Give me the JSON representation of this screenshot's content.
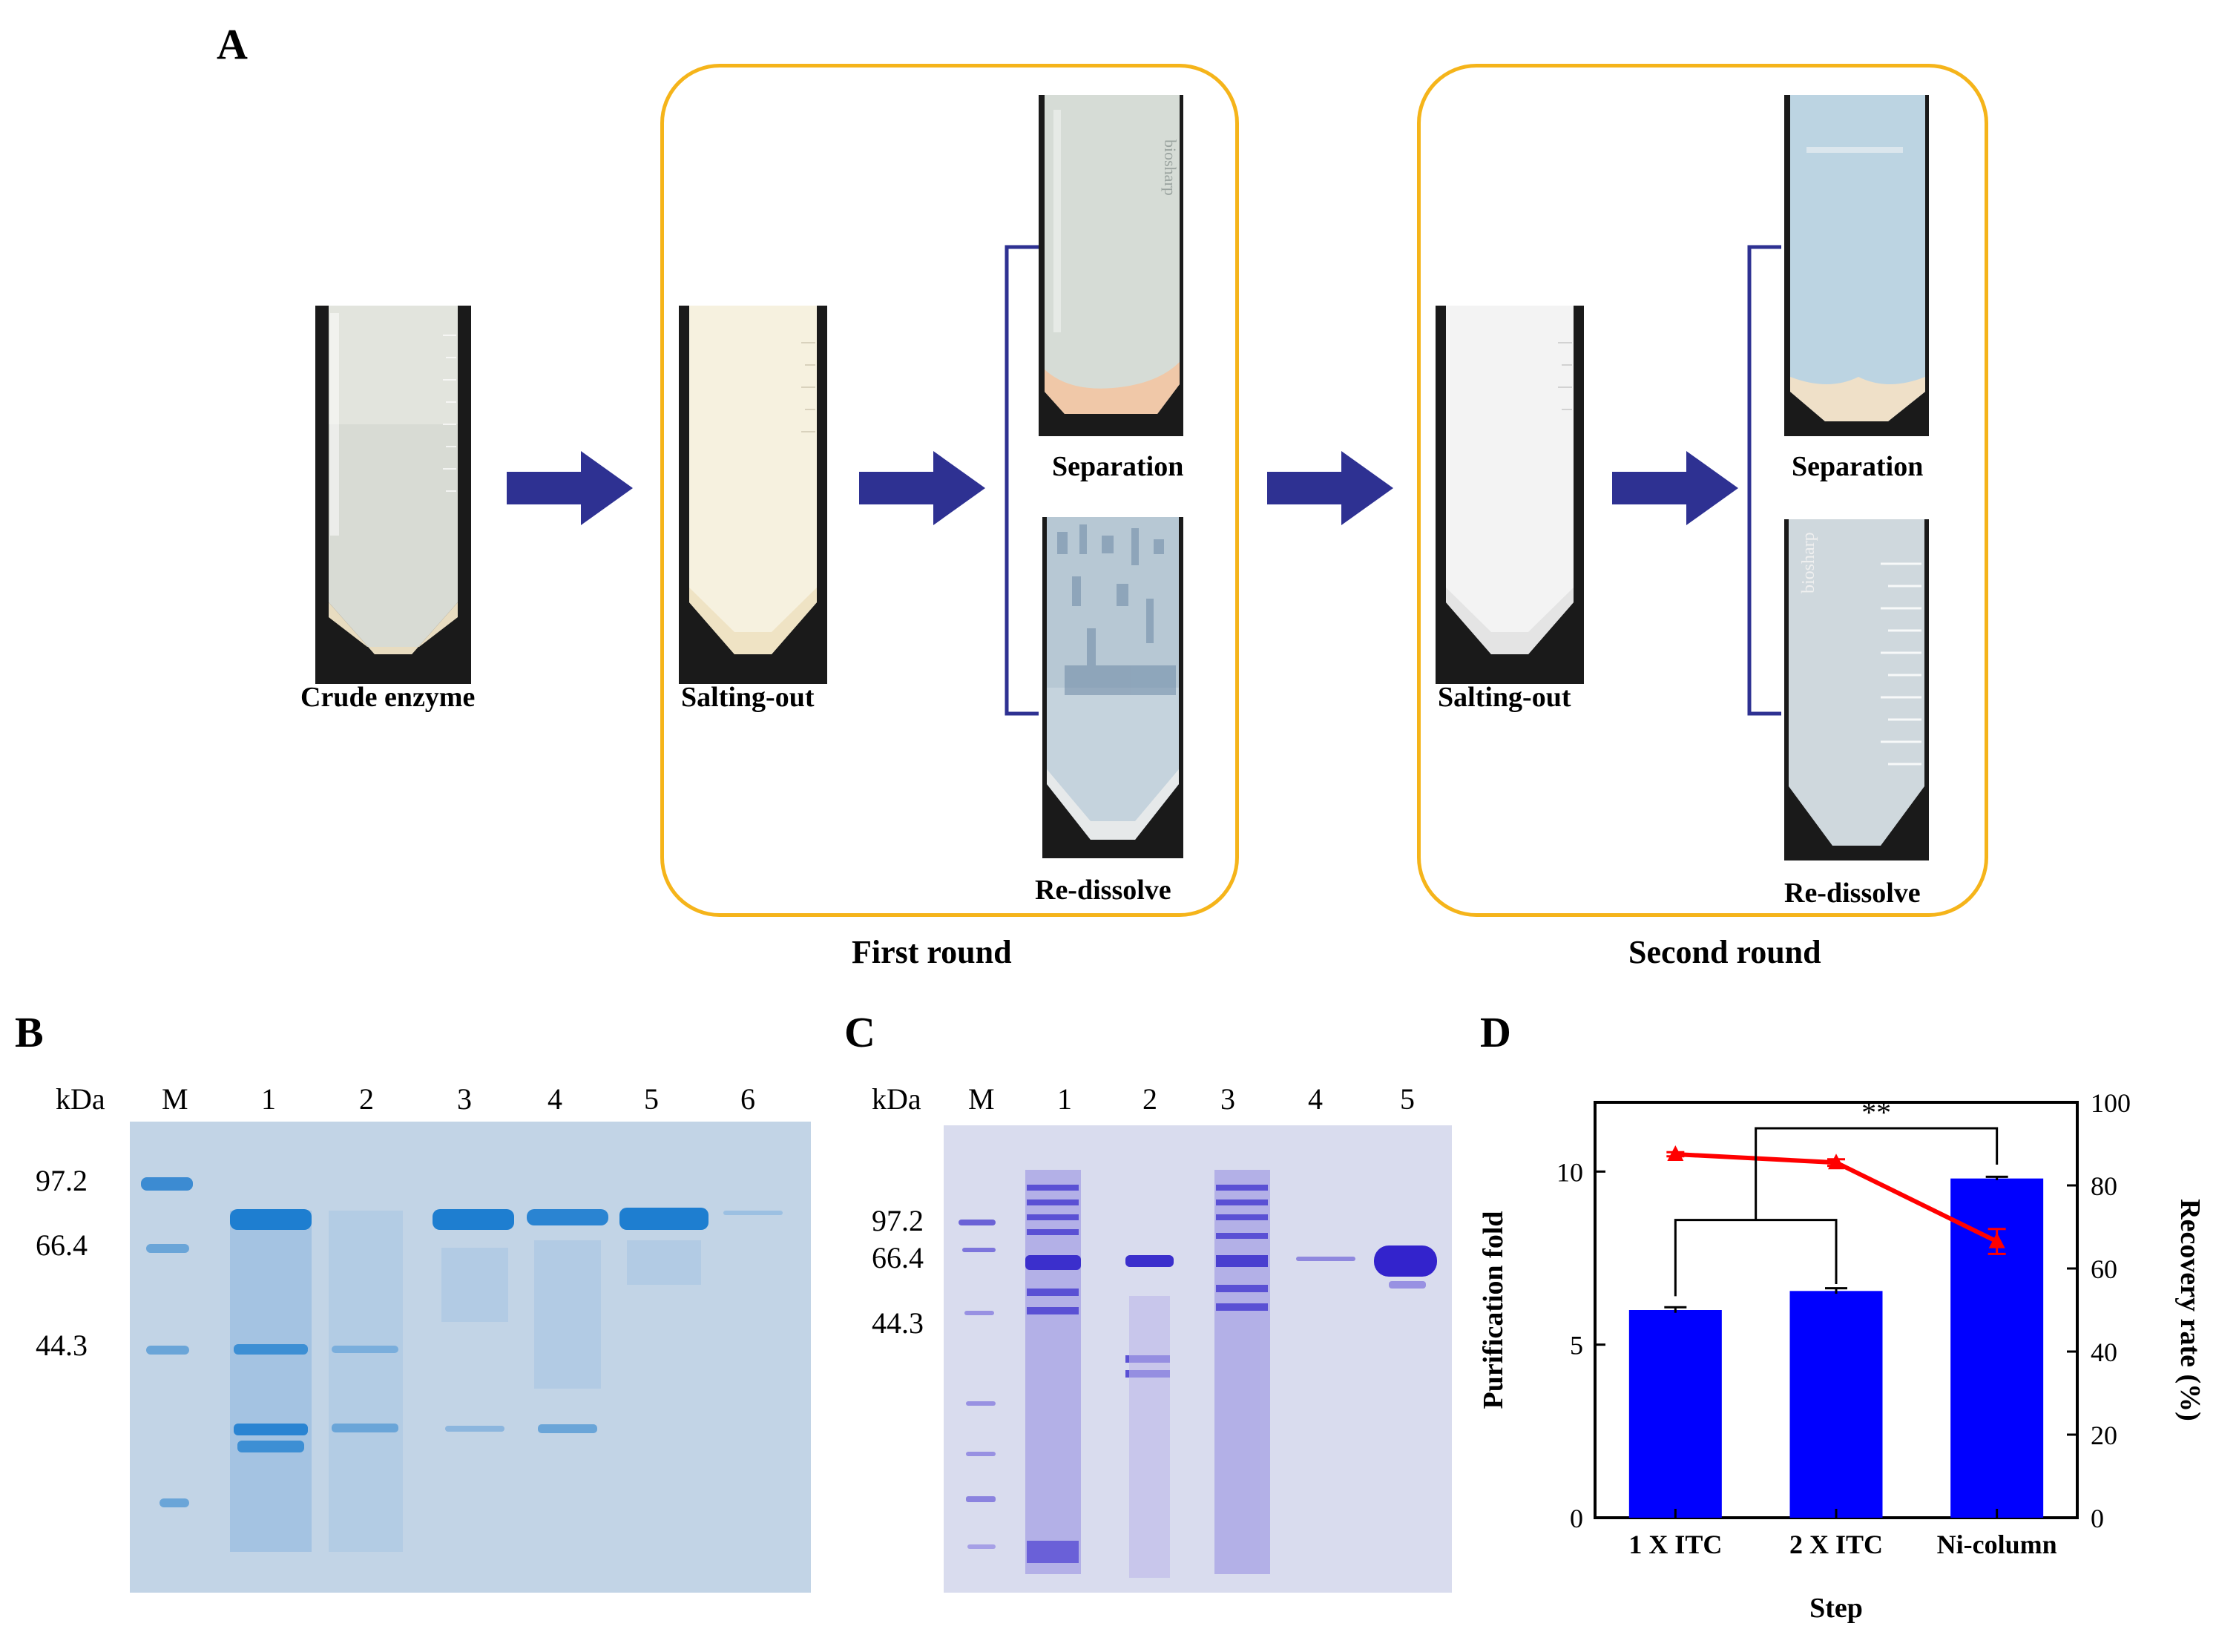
{
  "panel_a": {
    "letter": "A",
    "labels": {
      "crude": "Crude enzyme",
      "salting1": "Salting-out",
      "separation1": "Separation",
      "redissolve1": "Re-dissolve",
      "salting2": "Salting-out",
      "separation2": "Separation",
      "redissolve2": "Re-dissolve",
      "round1": "First round",
      "round2": "Second round"
    },
    "tube_brand_text": "biosharp",
    "colors": {
      "box": "#f5b41a",
      "arrow": "#2e3192",
      "bracket": "#2e3192"
    }
  },
  "panel_b": {
    "letter": "B",
    "unit": "kDa",
    "lanes": [
      "M",
      "1",
      "2",
      "3",
      "4",
      "5",
      "6"
    ],
    "markers": [
      "97.2",
      "66.4",
      "44.3"
    ]
  },
  "panel_c": {
    "letter": "C",
    "unit": "kDa",
    "lanes": [
      "M",
      "1",
      "2",
      "3",
      "4",
      "5"
    ],
    "markers": [
      "97.2",
      "66.4",
      "44.3"
    ]
  },
  "panel_d": {
    "letter": "D",
    "significance": "**"
  },
  "chart_data": {
    "type": "bar",
    "categories": [
      "1 X ITC",
      "2 X ITC",
      "Ni-column"
    ],
    "xlabel": "Step",
    "ylabel": "Purification fold",
    "y2label": "Recovery rate (%)",
    "ylim": [
      0,
      12
    ],
    "y2lim": [
      0,
      100
    ],
    "yticks": [
      0,
      5,
      10
    ],
    "y2ticks": [
      0,
      20,
      40,
      60,
      80,
      100
    ],
    "series": [
      {
        "axis": "left",
        "kind": "bar",
        "values": [
          6.0,
          6.55,
          9.8
        ],
        "errors": [
          0.08,
          0.08,
          0.05
        ],
        "color": "#0000ff"
      },
      {
        "axis": "right",
        "kind": "line",
        "values": [
          87.5,
          85.5,
          66.5
        ],
        "errors": [
          0.5,
          0.8,
          3.0
        ],
        "color": "#ff0000"
      }
    ],
    "significance_label": "**"
  }
}
